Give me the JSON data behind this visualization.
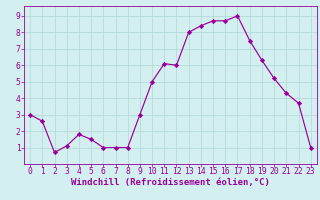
{
  "x": [
    0,
    1,
    2,
    3,
    4,
    5,
    6,
    7,
    8,
    9,
    10,
    11,
    12,
    13,
    14,
    15,
    16,
    17,
    18,
    19,
    20,
    21,
    22,
    23
  ],
  "y": [
    3.0,
    2.6,
    0.7,
    1.1,
    1.8,
    1.5,
    1.0,
    1.0,
    1.0,
    3.0,
    5.0,
    6.1,
    6.0,
    8.0,
    8.4,
    8.7,
    8.7,
    9.0,
    7.5,
    6.3,
    5.2,
    4.3,
    3.7,
    1.0
  ],
  "line_color": "#990099",
  "marker": "D",
  "marker_size": 2.2,
  "bg_color": "#d4efef",
  "grid_color": "#b0d8d8",
  "xlabel": "Windchill (Refroidissement éolien,°C)",
  "xlim": [
    -0.5,
    23.5
  ],
  "ylim": [
    0,
    9.6
  ],
  "yticks": [
    1,
    2,
    3,
    4,
    5,
    6,
    7,
    8,
    9
  ],
  "xticks": [
    0,
    1,
    2,
    3,
    4,
    5,
    6,
    7,
    8,
    9,
    10,
    11,
    12,
    13,
    14,
    15,
    16,
    17,
    18,
    19,
    20,
    21,
    22,
    23
  ],
  "tick_color": "#990099",
  "spine_color": "#990099",
  "label_color": "#990099",
  "tick_fontsize": 5.8,
  "label_fontsize": 6.5
}
